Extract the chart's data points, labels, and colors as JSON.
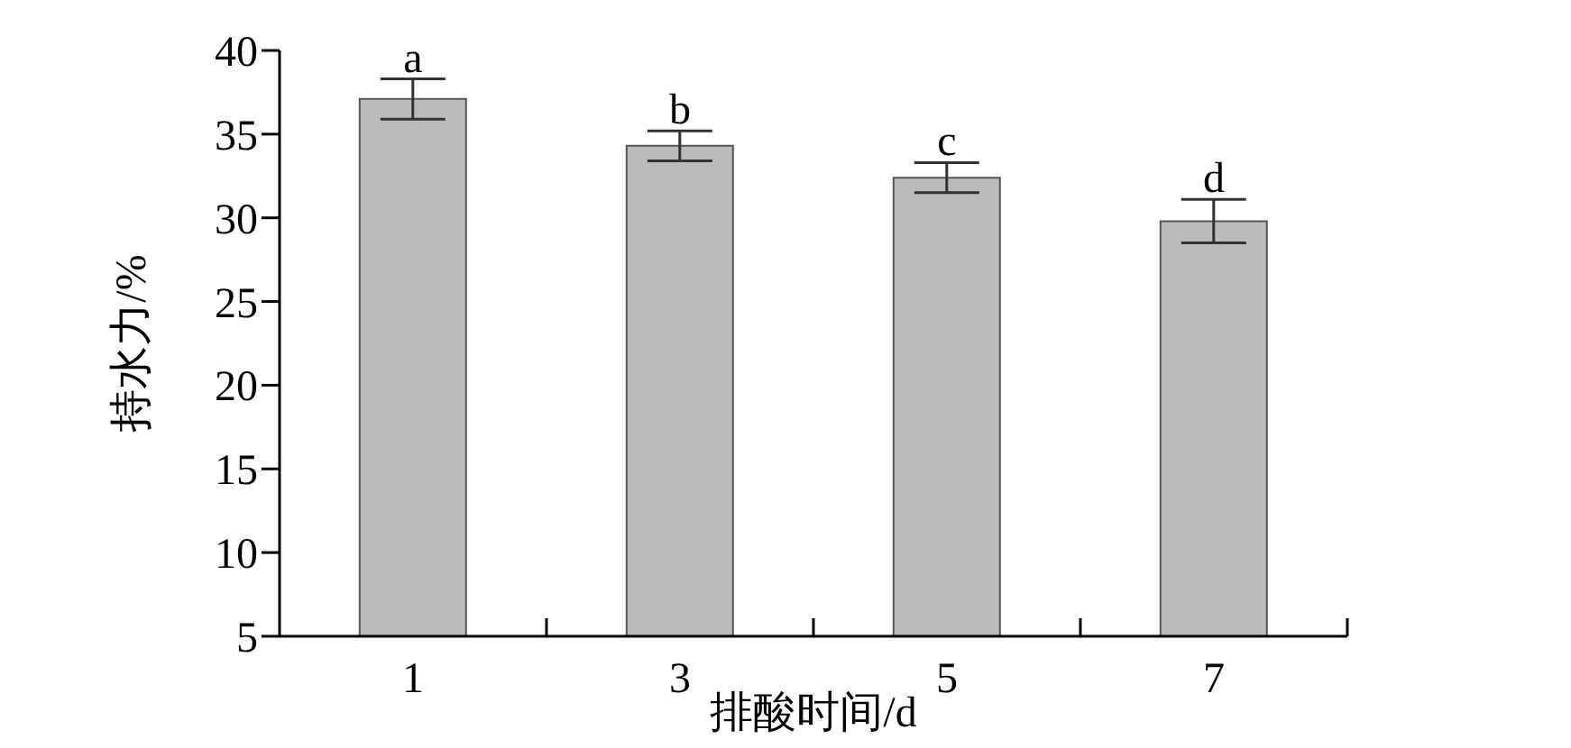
{
  "chart_data": {
    "type": "bar",
    "xlabel": "排酸时间/d",
    "ylabel": "持水力/%",
    "categories": [
      "1",
      "3",
      "5",
      "7"
    ],
    "values": [
      37.1,
      34.3,
      32.4,
      29.8
    ],
    "errors": [
      1.2,
      0.9,
      0.9,
      1.3
    ],
    "color": "#bdbbbd",
    "ylim": [
      5,
      40
    ],
    "yticks": [
      5,
      10,
      15,
      20,
      25,
      30,
      35,
      40
    ],
    "annotations": [
      {
        "text": "a",
        "x": "1",
        "y": 38.3
      },
      {
        "text": "b",
        "x": "3",
        "y": 35.2
      },
      {
        "text": "c",
        "x": "5",
        "y": 33.3
      },
      {
        "text": "d",
        "x": "7",
        "y": 31.1
      }
    ]
  }
}
